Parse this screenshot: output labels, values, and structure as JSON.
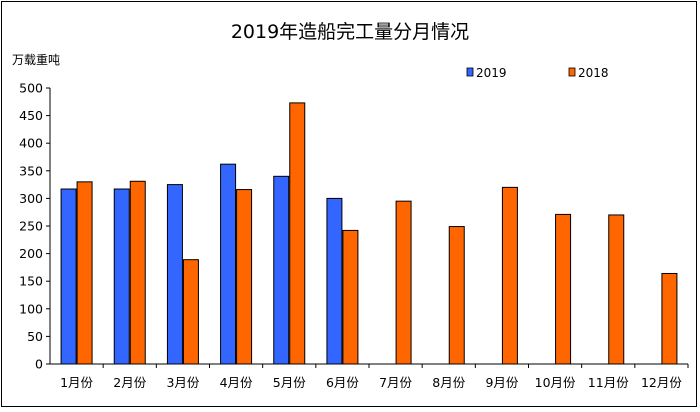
{
  "chart_data": {
    "type": "bar",
    "title": "2019年造船完工量分月情况",
    "ylabel": "万载重吨",
    "xlabel": "",
    "categories": [
      "1月份",
      "2月份",
      "3月份",
      "4月份",
      "5月份",
      "6月份",
      "7月份",
      "8月份",
      "9月份",
      "10月份",
      "11月份",
      "12月份"
    ],
    "series": [
      {
        "name": "2019",
        "color": "#3366ff",
        "values": [
          317,
          317,
          325,
          362,
          340,
          300,
          null,
          null,
          null,
          null,
          null,
          null
        ]
      },
      {
        "name": "2018",
        "color": "#ff6600",
        "values": [
          330,
          331,
          189,
          316,
          473,
          242,
          295,
          249,
          320,
          271,
          270,
          164
        ]
      }
    ],
    "ylim": [
      0,
      500
    ],
    "yticks": [
      0,
      50,
      100,
      150,
      200,
      250,
      300,
      350,
      400,
      450,
      500
    ],
    "grid": false,
    "legend": "top-right"
  }
}
